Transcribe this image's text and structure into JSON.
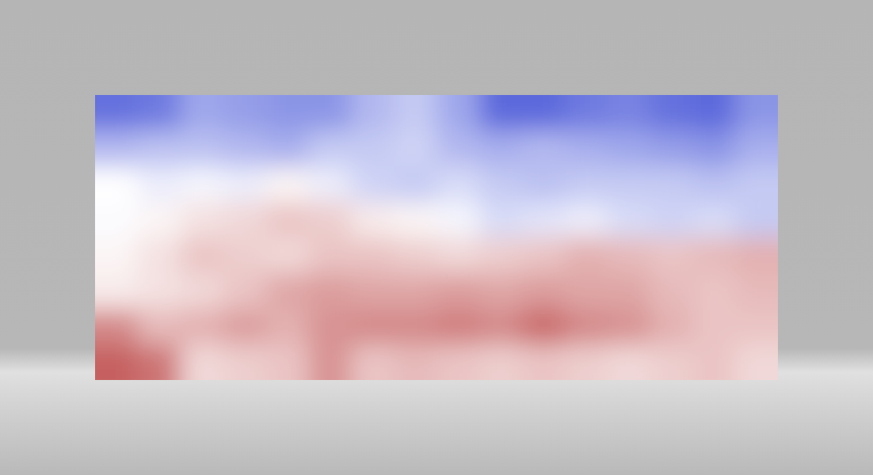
{
  "chart_data": {
    "type": "heatmap",
    "cells": [
      [
        -0.8,
        -0.75,
        -0.5,
        -0.55,
        -0.6,
        -0.6,
        -0.4,
        -0.3,
        -0.5,
        -0.85,
        -0.85,
        -0.75,
        -0.7,
        -0.8,
        -0.85,
        -0.6
      ],
      [
        -0.4,
        -0.35,
        -0.35,
        -0.4,
        -0.45,
        -0.3,
        -0.3,
        -0.25,
        -0.4,
        -0.45,
        -0.4,
        -0.45,
        -0.5,
        -0.55,
        -0.6,
        -0.45
      ],
      [
        0.0,
        -0.1,
        -0.05,
        -0.1,
        0.05,
        -0.1,
        -0.25,
        -0.3,
        -0.2,
        -0.3,
        -0.35,
        -0.3,
        -0.3,
        -0.3,
        -0.35,
        -0.3
      ],
      [
        -0.02,
        0.05,
        0.15,
        0.2,
        0.3,
        0.25,
        0.1,
        0.05,
        -0.05,
        -0.2,
        -0.15,
        -0.1,
        -0.2,
        -0.25,
        -0.2,
        -0.3
      ],
      [
        0.05,
        0.15,
        0.3,
        0.25,
        0.2,
        0.3,
        0.3,
        0.25,
        0.2,
        0.25,
        0.3,
        0.4,
        0.35,
        0.3,
        0.35,
        0.4
      ],
      [
        0.1,
        0.15,
        0.2,
        0.3,
        0.45,
        0.5,
        0.45,
        0.45,
        0.5,
        0.45,
        0.5,
        0.45,
        0.45,
        0.35,
        0.3,
        0.35
      ],
      [
        0.6,
        0.35,
        0.4,
        0.5,
        0.4,
        0.55,
        0.6,
        0.6,
        0.65,
        0.6,
        0.75,
        0.6,
        0.55,
        0.4,
        0.3,
        0.3
      ],
      [
        0.8,
        0.7,
        0.2,
        0.25,
        0.3,
        0.55,
        0.3,
        0.35,
        0.3,
        0.25,
        0.3,
        0.25,
        0.2,
        0.25,
        0.3,
        0.2
      ]
    ],
    "color_range": [
      -1,
      1
    ],
    "tick_labels": false
  }
}
